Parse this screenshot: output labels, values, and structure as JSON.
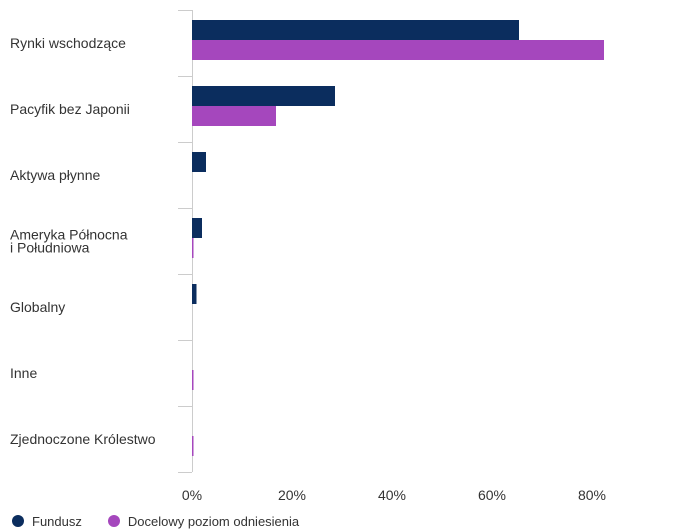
{
  "chart_data": {
    "type": "bar",
    "orientation": "horizontal",
    "categories": [
      [
        "Rynki wschodzące"
      ],
      [
        "Pacyfik bez Japonii"
      ],
      [
        "Aktywa płynne"
      ],
      [
        "Ameryka Północna",
        "i Południowa"
      ],
      [
        "Globalny"
      ],
      [
        "Inne"
      ],
      [
        "Zjednoczone Królestwo"
      ]
    ],
    "series": [
      {
        "name": "Fundusz",
        "color": "#0b2d5e",
        "values": [
          65.4,
          28.6,
          2.8,
          2.0,
          0.9,
          null,
          null
        ]
      },
      {
        "name": "Docelowy poziom odniesienia",
        "color": "#a547bd",
        "values": [
          82.4,
          16.8,
          null,
          0.3,
          null,
          0.3,
          0.3
        ]
      }
    ],
    "x_ticks": [
      "0%",
      "20%",
      "40%",
      "60%",
      "80%"
    ],
    "xlim": [
      0,
      100
    ],
    "grid": false,
    "legend_position": "bottom-left"
  }
}
